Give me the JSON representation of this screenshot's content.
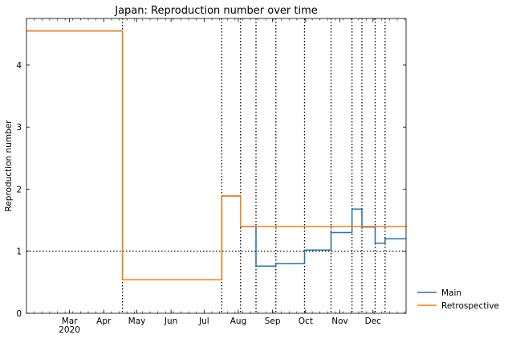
{
  "chart_data": {
    "type": "line",
    "title": "Japan: Reproduction number over time",
    "xlabel": "",
    "ylabel": "Reproduction number",
    "xlim": [
      "2020-01-22",
      "2020-12-31"
    ],
    "ylim": [
      0,
      4.75
    ],
    "yticks": [
      0,
      1,
      2,
      3,
      4
    ],
    "xticks": [
      {
        "date": "2020-03-01",
        "label": "Mar",
        "sublabel": "2020"
      },
      {
        "date": "2020-04-01",
        "label": "Apr",
        "sublabel": ""
      },
      {
        "date": "2020-05-01",
        "label": "May",
        "sublabel": ""
      },
      {
        "date": "2020-06-01",
        "label": "Jun",
        "sublabel": ""
      },
      {
        "date": "2020-07-01",
        "label": "Jul",
        "sublabel": ""
      },
      {
        "date": "2020-08-01",
        "label": "Aug",
        "sublabel": ""
      },
      {
        "date": "2020-09-01",
        "label": "Sep",
        "sublabel": ""
      },
      {
        "date": "2020-10-01",
        "label": "Oct",
        "sublabel": ""
      },
      {
        "date": "2020-11-01",
        "label": "Nov",
        "sublabel": ""
      },
      {
        "date": "2020-12-01",
        "label": "Dec",
        "sublabel": ""
      }
    ],
    "reference_line": {
      "y": 1,
      "style": "dotted",
      "color": "#000000"
    },
    "change_points": [
      "2020-04-18",
      "2020-07-17",
      "2020-08-03",
      "2020-08-17",
      "2020-09-04",
      "2020-09-30",
      "2020-10-24",
      "2020-11-12",
      "2020-11-21",
      "2020-12-03",
      "2020-12-12"
    ],
    "legend_position": "outside-right-bottom",
    "grid": false,
    "series": [
      {
        "name": "Main",
        "color": "#1f77b4",
        "step": "post",
        "x": [
          "2020-01-22",
          "2020-04-18",
          "2020-07-17",
          "2020-08-03",
          "2020-08-17",
          "2020-09-04",
          "2020-09-30",
          "2020-10-24",
          "2020-11-12",
          "2020-11-21",
          "2020-12-03",
          "2020-12-12",
          "2020-12-31"
        ],
        "values": [
          4.55,
          0.54,
          1.89,
          1.4,
          0.76,
          0.8,
          1.02,
          1.3,
          1.68,
          1.39,
          1.13,
          1.2,
          1.2
        ]
      },
      {
        "name": "Retrospective",
        "color": "#ff7f0e",
        "step": "post",
        "x": [
          "2020-01-22",
          "2020-04-18",
          "2020-07-17",
          "2020-08-03",
          "2020-12-31"
        ],
        "values": [
          4.55,
          0.54,
          1.89,
          1.4,
          1.4
        ]
      }
    ]
  }
}
